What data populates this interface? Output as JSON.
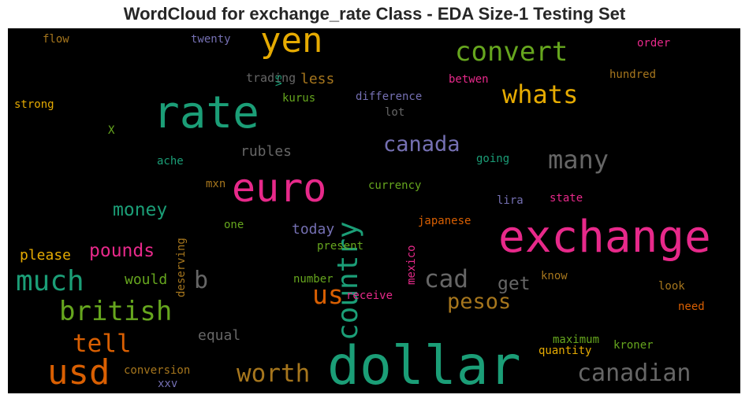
{
  "chart_data": {
    "type": "wordcloud",
    "title": "WordCloud for exchange_rate Class - EDA Size-1 Testing Set",
    "words": [
      {
        "text": "dollar",
        "color": "#1b9e77"
      },
      {
        "text": "exchange",
        "color": "#e7298a"
      },
      {
        "text": "rate",
        "color": "#1b9e77"
      },
      {
        "text": "euro",
        "color": "#e7298a"
      },
      {
        "text": "usd",
        "color": "#d95f02"
      },
      {
        "text": "yen",
        "color": "#e6ab02"
      },
      {
        "text": "country",
        "color": "#1b9e77"
      },
      {
        "text": "much",
        "color": "#1b9e77"
      },
      {
        "text": "convert",
        "color": "#66a61e"
      },
      {
        "text": "british",
        "color": "#66a61e"
      },
      {
        "text": "canadian",
        "color": "#666666"
      },
      {
        "text": "whats",
        "color": "#e6ab02"
      },
      {
        "text": "many",
        "color": "#666666"
      },
      {
        "text": "cad",
        "color": "#666666"
      },
      {
        "text": "tell",
        "color": "#d95f02"
      },
      {
        "text": "worth",
        "color": "#a6761d"
      },
      {
        "text": "us",
        "color": "#d95f02"
      },
      {
        "text": "canada",
        "color": "#7570b3"
      },
      {
        "text": "pesos",
        "color": "#a6761d"
      },
      {
        "text": "b",
        "color": "#666666"
      },
      {
        "text": "pounds",
        "color": "#e7298a"
      },
      {
        "text": "money",
        "color": "#1b9e77"
      },
      {
        "text": "get",
        "color": "#666666"
      },
      {
        "text": "rubles",
        "color": "#666666"
      },
      {
        "text": "less",
        "color": "#a6761d"
      },
      {
        "text": "today",
        "color": "#7570b3"
      },
      {
        "text": "please",
        "color": "#e6ab02"
      },
      {
        "text": "would",
        "color": "#66a61e"
      },
      {
        "text": "equal",
        "color": "#666666"
      },
      {
        "text": "trading",
        "color": "#666666"
      },
      {
        "text": "kurus",
        "color": "#66a61e"
      },
      {
        "text": "difference",
        "color": "#7570b3"
      },
      {
        "text": "lot",
        "color": "#666666"
      },
      {
        "text": "betwen",
        "color": "#e7298a"
      },
      {
        "text": "hundred",
        "color": "#a6761d"
      },
      {
        "text": "order",
        "color": "#e7298a"
      },
      {
        "text": "flow",
        "color": "#a6761d"
      },
      {
        "text": "twenty",
        "color": "#7570b3"
      },
      {
        "text": "vs",
        "color": "#1b9e77"
      },
      {
        "text": "strong",
        "color": "#e6ab02"
      },
      {
        "text": "X",
        "color": "#66a61e"
      },
      {
        "text": "ache",
        "color": "#1b9e77"
      },
      {
        "text": "deserving",
        "color": "#a6761d"
      },
      {
        "text": "mxn",
        "color": "#a6761d"
      },
      {
        "text": "one",
        "color": "#66a61e"
      },
      {
        "text": "currency",
        "color": "#66a61e"
      },
      {
        "text": "going",
        "color": "#1b9e77"
      },
      {
        "text": "lira",
        "color": "#7570b3"
      },
      {
        "text": "state",
        "color": "#e7298a"
      },
      {
        "text": "mexico",
        "color": "#e7298a"
      },
      {
        "text": "japanese",
        "color": "#d95f02"
      },
      {
        "text": "present",
        "color": "#66a61e"
      },
      {
        "text": "number",
        "color": "#66a61e"
      },
      {
        "text": "receive",
        "color": "#e7298a"
      },
      {
        "text": "know",
        "color": "#a6761d"
      },
      {
        "text": "look",
        "color": "#a6761d"
      },
      {
        "text": "need",
        "color": "#d95f02"
      },
      {
        "text": "maximum",
        "color": "#66a61e"
      },
      {
        "text": "quantity",
        "color": "#e6ab02"
      },
      {
        "text": "kroner",
        "color": "#66a61e"
      },
      {
        "text": "conversion",
        "color": "#a6761d"
      },
      {
        "text": "xxv",
        "color": "#7570b3"
      }
    ]
  }
}
